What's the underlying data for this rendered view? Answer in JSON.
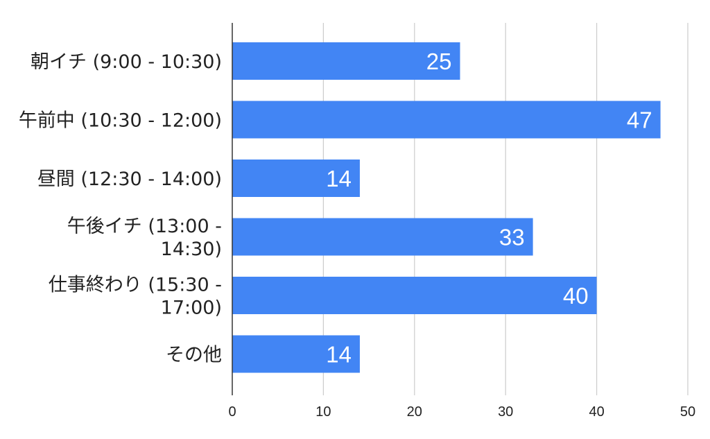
{
  "chart_data": {
    "type": "bar",
    "orientation": "horizontal",
    "title": "",
    "xlabel": "",
    "ylabel": "",
    "categories": [
      "朝イチ (9:00 - 10:30)",
      "午前中 (10:30 - 12:00)",
      "昼間 (12:30 - 14:00)",
      "午後イチ (13:00 - 14:30)",
      "仕事終わり (15:30 - 17:00)",
      "その他"
    ],
    "category_label_lines": [
      [
        "朝イチ (9:00 - 10:30)"
      ],
      [
        "午前中 (10:30 - 12:00)"
      ],
      [
        "昼間 (12:30 - 14:00)"
      ],
      [
        "午後イチ (13:00 -",
        "14:30)"
      ],
      [
        "仕事終わり (15:30 -",
        "17:00)"
      ],
      [
        "その他"
      ]
    ],
    "values": [
      25,
      47,
      14,
      33,
      40,
      14
    ],
    "xlim": [
      0,
      50
    ],
    "xticks": [
      0,
      10,
      20,
      30,
      40,
      50
    ],
    "grid": "vertical",
    "legend": "none",
    "bar_color": "#4285f4",
    "data_label_color": "#ffffff"
  }
}
